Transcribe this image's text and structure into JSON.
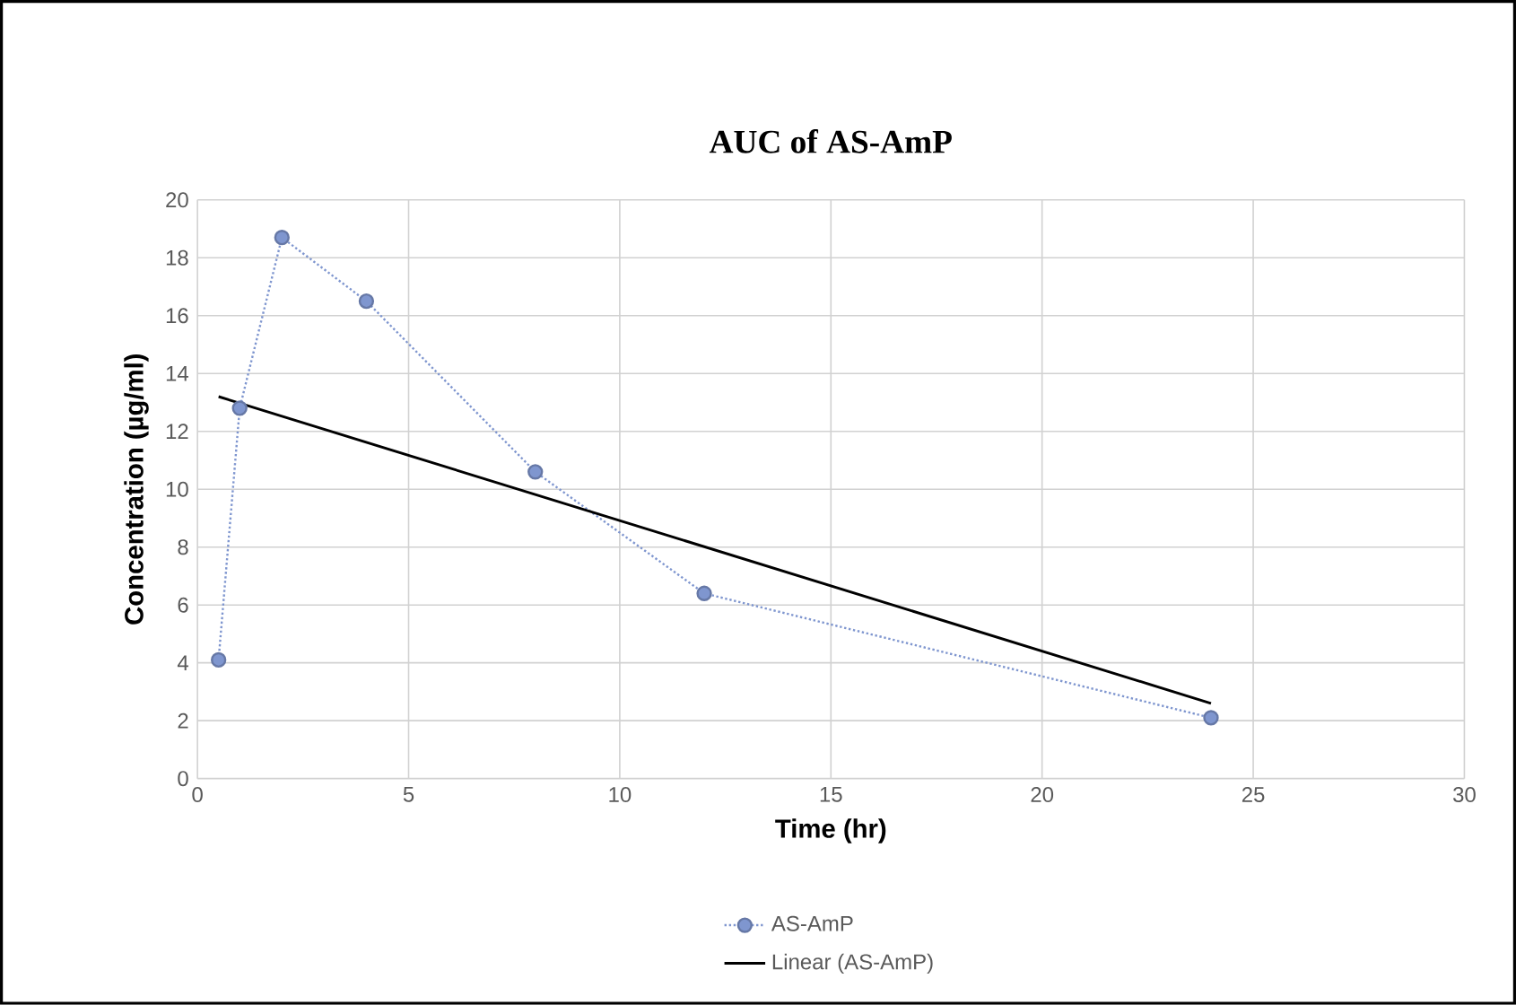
{
  "chart_data": {
    "type": "line",
    "title": "AUC of AS-AmP",
    "xlabel": "Time (hr)",
    "ylabel": "Concentration (µg/ml)",
    "xlim": [
      0,
      30
    ],
    "xticks": [
      0,
      5,
      10,
      15,
      20,
      25,
      30
    ],
    "ylim": [
      0,
      20
    ],
    "yticks": [
      0,
      2,
      4,
      6,
      8,
      10,
      12,
      14,
      16,
      18,
      20
    ],
    "grid": true,
    "legend": "bottom",
    "series": [
      {
        "name": "AS-AmP",
        "color": "#7f96cf",
        "marker": "circle",
        "line_style": "dotted",
        "x": [
          0.5,
          1,
          2,
          4,
          8,
          12,
          24
        ],
        "values": [
          4.1,
          12.8,
          18.7,
          16.5,
          10.6,
          6.4,
          2.1
        ]
      },
      {
        "name": "Linear (AS-AmP)",
        "color": "#000000",
        "marker": "none",
        "line_style": "solid",
        "x": [
          0.5,
          24
        ],
        "values": [
          13.2,
          2.6
        ]
      }
    ]
  }
}
